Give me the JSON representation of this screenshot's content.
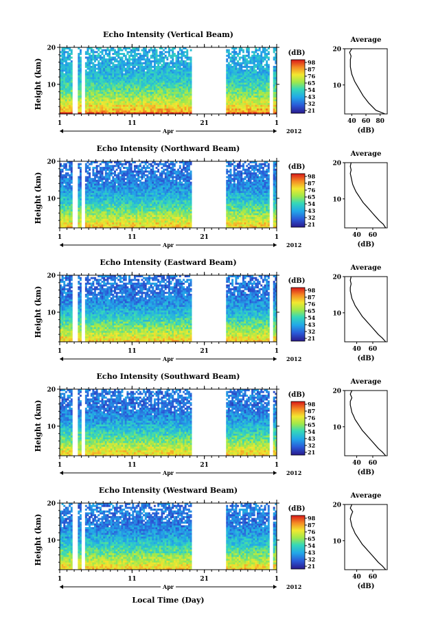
{
  "figure": {
    "shared_xlabel": "Local Time (Day)",
    "month_label": "Apr",
    "year_label": "2012",
    "colorbar_label": "(dB)",
    "colorbar_ticks": [
      "98",
      "87",
      "76",
      "65",
      "54",
      "43",
      "32",
      "21"
    ],
    "profile_title": "Average",
    "profile_xlabel": "(dB)",
    "ylabel": "Height (km)"
  },
  "chart_data": [
    {
      "type": "heatmap",
      "title": "Echo Intensity (Vertical Beam)",
      "xlabel": "",
      "ylabel": "Height (km)",
      "xlim": [
        1,
        31
      ],
      "ylim": [
        2,
        20
      ],
      "xticks": [
        "1",
        "11",
        "21",
        "1"
      ],
      "yticks": [
        "10",
        "20"
      ],
      "colorbar": {
        "label": "(dB)",
        "range": [
          21,
          98
        ],
        "ticks": [
          98,
          87,
          76,
          65,
          54,
          43,
          32,
          21
        ]
      },
      "data_gaps_days": [
        [
          2.8,
          3.4
        ],
        [
          4.0,
          4.6
        ],
        [
          19.2,
          24.1
        ],
        [
          30.0,
          30.5
        ]
      ],
      "profile": {
        "title": "Average",
        "xlabel": "(dB)",
        "xticks": [
          "40",
          "60",
          "80"
        ],
        "xlim": [
          30,
          90
        ],
        "height": [
          2,
          3,
          4,
          5,
          6,
          7,
          8,
          9,
          10,
          11,
          12,
          13,
          14,
          15,
          16,
          17,
          18,
          19,
          20
        ],
        "value": [
          87,
          74,
          69,
          64,
          60,
          56,
          53,
          50,
          47,
          44,
          42,
          40,
          39,
          38,
          38,
          38,
          39,
          37,
          40
        ]
      }
    },
    {
      "type": "heatmap",
      "title": "Echo Intensity (Northward Beam)",
      "xlabel": "",
      "ylabel": "Height (km)",
      "xlim": [
        1,
        31
      ],
      "ylim": [
        2,
        20
      ],
      "xticks": [
        "1",
        "11",
        "21",
        "1"
      ],
      "yticks": [
        "10",
        "20"
      ],
      "colorbar": {
        "label": "(dB)",
        "range": [
          21,
          98
        ],
        "ticks": [
          98,
          87,
          76,
          65,
          54,
          43,
          32,
          21
        ]
      },
      "data_gaps_days": [
        [
          2.8,
          3.4
        ],
        [
          4.0,
          4.6
        ],
        [
          19.2,
          24.1
        ],
        [
          30.0,
          30.5
        ]
      ],
      "profile": {
        "title": "Average",
        "xlabel": "(dB)",
        "xticks": [
          "40",
          "60"
        ],
        "xlim": [
          25,
          78
        ],
        "height": [
          2,
          3,
          4,
          5,
          6,
          7,
          8,
          9,
          10,
          11,
          12,
          13,
          14,
          15,
          16,
          17,
          18,
          19,
          20
        ],
        "value": [
          76,
          73,
          68,
          64,
          60,
          56,
          52,
          48,
          45,
          42,
          39,
          37,
          35,
          34,
          33,
          32,
          33,
          32,
          33
        ]
      }
    },
    {
      "type": "heatmap",
      "title": "Echo Intensity (Eastward Beam)",
      "xlabel": "",
      "ylabel": "Height (km)",
      "xlim": [
        1,
        31
      ],
      "ylim": [
        2,
        20
      ],
      "xticks": [
        "1",
        "11",
        "21",
        "1"
      ],
      "yticks": [
        "10",
        "20"
      ],
      "colorbar": {
        "label": "(dB)",
        "range": [
          21,
          98
        ],
        "ticks": [
          98,
          87,
          76,
          65,
          54,
          43,
          32,
          21
        ]
      },
      "data_gaps_days": [
        [
          2.8,
          3.4
        ],
        [
          4.0,
          4.6
        ],
        [
          19.2,
          24.1
        ],
        [
          30.0,
          30.5
        ]
      ],
      "profile": {
        "title": "Average",
        "xlabel": "(dB)",
        "xticks": [
          "40",
          "60"
        ],
        "xlim": [
          25,
          78
        ],
        "height": [
          2,
          3,
          4,
          5,
          6,
          7,
          8,
          9,
          10,
          11,
          12,
          13,
          14,
          15,
          16,
          17,
          18,
          19,
          20
        ],
        "value": [
          76,
          72,
          67,
          63,
          59,
          55,
          51,
          47,
          44,
          41,
          38,
          36,
          34,
          33,
          32,
          32,
          33,
          32,
          33
        ]
      }
    },
    {
      "type": "heatmap",
      "title": "Echo Intensity (Southward Beam)",
      "xlabel": "",
      "ylabel": "Height (km)",
      "xlim": [
        1,
        31
      ],
      "ylim": [
        2,
        20
      ],
      "xticks": [
        "1",
        "11",
        "21",
        "1"
      ],
      "yticks": [
        "10",
        "20"
      ],
      "colorbar": {
        "label": "(dB)",
        "range": [
          21,
          98
        ],
        "ticks": [
          98,
          87,
          76,
          65,
          54,
          43,
          32,
          21
        ]
      },
      "data_gaps_days": [
        [
          2.8,
          3.4
        ],
        [
          4.0,
          4.6
        ],
        [
          19.2,
          24.1
        ],
        [
          30.0,
          30.5
        ]
      ],
      "profile": {
        "title": "Average",
        "xlabel": "(dB)",
        "xticks": [
          "40",
          "60"
        ],
        "xlim": [
          25,
          78
        ],
        "height": [
          2,
          3,
          4,
          5,
          6,
          7,
          8,
          9,
          10,
          11,
          12,
          13,
          14,
          15,
          16,
          17,
          18,
          19,
          20
        ],
        "value": [
          76,
          72,
          67,
          63,
          59,
          55,
          51,
          47,
          44,
          41,
          38,
          36,
          34,
          33,
          32,
          32,
          34,
          32,
          34
        ]
      }
    },
    {
      "type": "heatmap",
      "title": "Echo Intensity (Westward Beam)",
      "xlabel": "Local Time (Day)",
      "ylabel": "Height (km)",
      "xlim": [
        1,
        31
      ],
      "ylim": [
        2,
        20
      ],
      "xticks": [
        "1",
        "11",
        "21",
        "1"
      ],
      "yticks": [
        "10",
        "20"
      ],
      "colorbar": {
        "label": "(dB)",
        "range": [
          21,
          98
        ],
        "ticks": [
          98,
          87,
          76,
          65,
          54,
          43,
          32,
          21
        ]
      },
      "data_gaps_days": [
        [
          2.8,
          3.4
        ],
        [
          4.0,
          4.6
        ],
        [
          19.2,
          24.1
        ],
        [
          30.0,
          30.5
        ]
      ],
      "profile": {
        "title": "Average",
        "xlabel": "(dB)",
        "xticks": [
          "40",
          "60"
        ],
        "xlim": [
          25,
          78
        ],
        "height": [
          2,
          3,
          4,
          5,
          6,
          7,
          8,
          9,
          10,
          11,
          12,
          13,
          14,
          15,
          16,
          17,
          18,
          19,
          20
        ],
        "value": [
          76,
          72,
          67,
          63,
          59,
          55,
          51,
          47,
          44,
          41,
          38,
          36,
          34,
          33,
          32,
          33,
          35,
          32,
          34
        ]
      }
    }
  ]
}
